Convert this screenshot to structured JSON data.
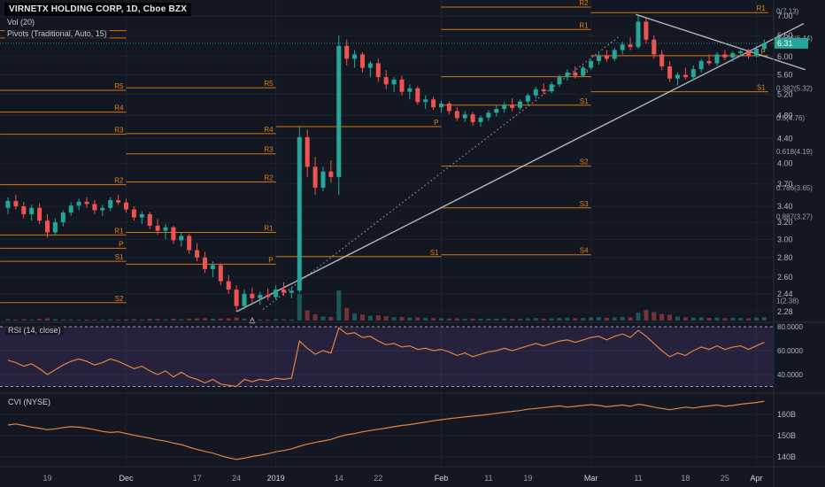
{
  "app": {
    "title": "VIRNETX HOLDING CORP, 1D, Cboe BZX",
    "indicators": {
      "volume": "Vol (20)",
      "pivots": "Pivots (Traditional, Auto, 15)"
    },
    "panels": {
      "rsi": "RSI (14, close)",
      "cvi": "CVI (NYSE)"
    }
  },
  "colors": {
    "bg": "#131722",
    "up": "#26a69a",
    "down": "#ef5350",
    "pivot": "#e8820e",
    "trend": "#b8bcc8",
    "rsi_line": "#e0833c",
    "cvi_line": "#e0833c",
    "band": "#7e57c2",
    "grid": "#1c2230",
    "separator": "#2a2e39",
    "axis_text": "#b2b5be",
    "axis_text_dim": "#9598a1",
    "axis_text_strong": "#d1d4dc",
    "fib_text": "#9aa0aa",
    "price_tag_bg": "#26a69a"
  },
  "chart_data": {
    "type": "candlestick",
    "symbol": "VIRNETX HOLDING CORP",
    "interval": "1D",
    "exchange": "Cboe BZX",
    "price_scale": "log",
    "price_axis_labels": [
      "7.00",
      "6.50",
      "6.00",
      "5.60",
      "5.20",
      "4.80",
      "4.40",
      "4.00",
      "3.70",
      "3.40",
      "3.20",
      "3.00",
      "2.80",
      "2.60",
      "2.44",
      "2.28"
    ],
    "time_axis_labels": [
      {
        "i": 5,
        "t": "19",
        "strong": false
      },
      {
        "i": 15,
        "t": "Dec",
        "strong": true
      },
      {
        "i": 24,
        "t": "17",
        "strong": false
      },
      {
        "i": 29,
        "t": "24",
        "strong": false
      },
      {
        "i": 34,
        "t": "2019",
        "strong": true
      },
      {
        "i": 42,
        "t": "14",
        "strong": false
      },
      {
        "i": 47,
        "t": "22",
        "strong": false
      },
      {
        "i": 55,
        "t": "Feb",
        "strong": true
      },
      {
        "i": 61,
        "t": "11",
        "strong": false
      },
      {
        "i": 66,
        "t": "19",
        "strong": false
      },
      {
        "i": 74,
        "t": "Mar",
        "strong": true
      },
      {
        "i": 80,
        "t": "11",
        "strong": false
      },
      {
        "i": 86,
        "t": "18",
        "strong": false
      },
      {
        "i": 91,
        "t": "25",
        "strong": false
      },
      {
        "i": 95,
        "t": "Apr",
        "strong": true
      }
    ],
    "volume_max": 25,
    "candles": [
      [
        3.38,
        3.52,
        3.3,
        3.47,
        1.2
      ],
      [
        3.47,
        3.55,
        3.36,
        3.4,
        0.9
      ],
      [
        3.4,
        3.46,
        3.25,
        3.3,
        1.1
      ],
      [
        3.3,
        3.42,
        3.22,
        3.38,
        0.8
      ],
      [
        3.38,
        3.44,
        3.18,
        3.22,
        1.3
      ],
      [
        3.22,
        3.3,
        3.02,
        3.08,
        1.8
      ],
      [
        3.08,
        3.25,
        3.05,
        3.2,
        1.1
      ],
      [
        3.2,
        3.35,
        3.15,
        3.32,
        0.9
      ],
      [
        3.32,
        3.45,
        3.28,
        3.41,
        0.8
      ],
      [
        3.41,
        3.5,
        3.35,
        3.46,
        0.7
      ],
      [
        3.46,
        3.52,
        3.38,
        3.43,
        0.6
      ],
      [
        3.43,
        3.48,
        3.3,
        3.35,
        0.8
      ],
      [
        3.35,
        3.42,
        3.28,
        3.38,
        0.7
      ],
      [
        3.38,
        3.52,
        3.34,
        3.48,
        0.9
      ],
      [
        3.48,
        3.55,
        3.42,
        3.45,
        0.8
      ],
      [
        3.45,
        3.5,
        3.32,
        3.36,
        1.0
      ],
      [
        3.36,
        3.4,
        3.22,
        3.26,
        1.2
      ],
      [
        3.26,
        3.34,
        3.18,
        3.3,
        0.9
      ],
      [
        3.3,
        3.33,
        3.12,
        3.16,
        1.4
      ],
      [
        3.16,
        3.24,
        3.05,
        3.1,
        1.3
      ],
      [
        3.1,
        3.18,
        3.0,
        3.14,
        1.0
      ],
      [
        3.14,
        3.16,
        2.95,
        2.99,
        1.5
      ],
      [
        2.99,
        3.08,
        2.92,
        3.04,
        1.1
      ],
      [
        3.04,
        3.06,
        2.84,
        2.88,
        1.6
      ],
      [
        2.88,
        2.96,
        2.76,
        2.8,
        1.8
      ],
      [
        2.8,
        2.86,
        2.64,
        2.68,
        2.0
      ],
      [
        2.68,
        2.76,
        2.6,
        2.72,
        1.4
      ],
      [
        2.72,
        2.74,
        2.52,
        2.56,
        1.7
      ],
      [
        2.56,
        2.62,
        2.44,
        2.48,
        1.9
      ],
      [
        2.48,
        2.52,
        2.28,
        2.33,
        2.4
      ],
      [
        2.33,
        2.48,
        2.3,
        2.44,
        1.6
      ],
      [
        2.44,
        2.5,
        2.36,
        2.4,
        1.1
      ],
      [
        2.4,
        2.46,
        2.34,
        2.43,
        0.9
      ],
      [
        2.43,
        2.49,
        2.38,
        2.41,
        0.8
      ],
      [
        2.41,
        2.52,
        2.39,
        2.48,
        1.2
      ],
      [
        2.48,
        2.55,
        2.42,
        2.45,
        1.0
      ],
      [
        2.45,
        2.5,
        2.4,
        2.47,
        0.9
      ],
      [
        2.47,
        4.6,
        2.45,
        4.42,
        22.0
      ],
      [
        4.42,
        4.55,
        3.8,
        3.95,
        8.5
      ],
      [
        3.95,
        4.1,
        3.55,
        3.65,
        5.2
      ],
      [
        3.65,
        3.95,
        3.6,
        3.88,
        3.4
      ],
      [
        3.88,
        4.05,
        3.72,
        3.8,
        3.0
      ],
      [
        3.8,
        6.5,
        3.55,
        6.25,
        25.0
      ],
      [
        6.25,
        6.4,
        5.8,
        5.95,
        10.5
      ],
      [
        5.95,
        6.15,
        5.75,
        6.05,
        6.0
      ],
      [
        6.05,
        6.1,
        5.65,
        5.75,
        5.0
      ],
      [
        5.75,
        5.9,
        5.55,
        5.85,
        4.0
      ],
      [
        5.85,
        5.95,
        5.45,
        5.55,
        4.4
      ],
      [
        5.55,
        5.7,
        5.3,
        5.4,
        3.6
      ],
      [
        5.4,
        5.55,
        5.25,
        5.5,
        2.8
      ],
      [
        5.5,
        5.58,
        5.18,
        5.25,
        3.0
      ],
      [
        5.25,
        5.4,
        5.1,
        5.32,
        2.4
      ],
      [
        5.32,
        5.36,
        5.0,
        5.05,
        2.6
      ],
      [
        5.05,
        5.18,
        4.92,
        5.1,
        2.2
      ],
      [
        5.1,
        5.15,
        4.9,
        4.95,
        2.0
      ],
      [
        4.95,
        5.08,
        4.85,
        5.02,
        1.8
      ],
      [
        5.02,
        5.06,
        4.82,
        4.88,
        1.7
      ],
      [
        4.88,
        4.95,
        4.7,
        4.75,
        1.9
      ],
      [
        4.75,
        4.88,
        4.68,
        4.82,
        1.5
      ],
      [
        4.82,
        4.86,
        4.62,
        4.68,
        1.6
      ],
      [
        4.68,
        4.8,
        4.6,
        4.76,
        1.4
      ],
      [
        4.76,
        4.9,
        4.7,
        4.85,
        1.6
      ],
      [
        4.85,
        4.98,
        4.78,
        4.92,
        1.5
      ],
      [
        4.92,
        5.05,
        4.85,
        5.0,
        1.7
      ],
      [
        5.0,
        5.12,
        4.88,
        4.94,
        1.4
      ],
      [
        4.94,
        5.1,
        4.9,
        5.06,
        1.5
      ],
      [
        5.06,
        5.22,
        5.0,
        5.18,
        1.8
      ],
      [
        5.18,
        5.35,
        5.12,
        5.3,
        2.0
      ],
      [
        5.3,
        5.42,
        5.2,
        5.26,
        1.6
      ],
      [
        5.26,
        5.45,
        5.22,
        5.4,
        1.8
      ],
      [
        5.4,
        5.6,
        5.35,
        5.55,
        2.2
      ],
      [
        5.55,
        5.72,
        5.48,
        5.65,
        2.4
      ],
      [
        5.65,
        5.78,
        5.52,
        5.58,
        1.9
      ],
      [
        5.58,
        5.8,
        5.55,
        5.75,
        2.1
      ],
      [
        5.75,
        5.95,
        5.7,
        5.9,
        2.6
      ],
      [
        5.9,
        6.08,
        5.82,
        6.02,
        2.8
      ],
      [
        6.02,
        6.15,
        5.88,
        5.95,
        2.3
      ],
      [
        5.95,
        6.2,
        5.9,
        6.15,
        2.6
      ],
      [
        6.15,
        6.35,
        6.05,
        6.28,
        3.0
      ],
      [
        6.28,
        6.45,
        6.15,
        6.22,
        2.7
      ],
      [
        6.22,
        7.0,
        6.18,
        6.85,
        6.5
      ],
      [
        6.85,
        6.95,
        6.3,
        6.4,
        9.0
      ],
      [
        6.4,
        6.5,
        5.95,
        6.05,
        7.0
      ],
      [
        6.05,
        6.15,
        5.7,
        5.78,
        5.5
      ],
      [
        5.78,
        5.9,
        5.45,
        5.52,
        4.8
      ],
      [
        5.52,
        5.65,
        5.38,
        5.6,
        3.2
      ],
      [
        5.6,
        5.75,
        5.5,
        5.55,
        2.6
      ],
      [
        5.55,
        5.8,
        5.48,
        5.72,
        2.4
      ],
      [
        5.72,
        5.95,
        5.65,
        5.9,
        2.8
      ],
      [
        5.9,
        6.05,
        5.8,
        5.85,
        2.2
      ],
      [
        5.85,
        6.1,
        5.78,
        6.05,
        2.5
      ],
      [
        6.05,
        6.15,
        5.92,
        5.98,
        2.0
      ],
      [
        5.98,
        6.12,
        5.88,
        6.08,
        2.2
      ],
      [
        6.08,
        6.2,
        6.0,
        6.12,
        2.1
      ],
      [
        6.12,
        6.18,
        5.95,
        6.02,
        1.9
      ],
      [
        6.02,
        6.25,
        5.98,
        6.18,
        2.4
      ],
      [
        6.18,
        6.4,
        6.1,
        6.31,
        2.8
      ]
    ],
    "pivot_groups": [
      {
        "i1": -1,
        "i2": 15,
        "levels": [
          {
            "label": "",
            "price": 6.62
          },
          {
            "label": "",
            "price": 6.44
          },
          {
            "label": "R5",
            "price": 5.28
          },
          {
            "label": "R4",
            "price": 4.86
          },
          {
            "label": "R3",
            "price": 4.47
          },
          {
            "label": "R2",
            "price": 3.69
          },
          {
            "label": "R1",
            "price": 3.05
          },
          {
            "label": "P",
            "price": 2.9
          },
          {
            "label": "S1",
            "price": 2.76
          },
          {
            "label": "S2",
            "price": 2.36
          }
        ]
      },
      {
        "i1": 15,
        "i2": 34,
        "levels": [
          {
            "label": "R5",
            "price": 5.33
          },
          {
            "label": "R4",
            "price": 4.48
          },
          {
            "label": "R3",
            "price": 4.15
          },
          {
            "label": "R2",
            "price": 3.73
          },
          {
            "label": "R1",
            "price": 3.08
          },
          {
            "label": "P",
            "price": 2.73
          }
        ]
      },
      {
        "i1": 34,
        "i2": 55,
        "levels": [
          {
            "label": "P",
            "price": 4.6
          },
          {
            "label": "S1",
            "price": 2.81
          }
        ]
      },
      {
        "i1": 55,
        "i2": 74,
        "levels": [
          {
            "label": "R2",
            "price": 7.24
          },
          {
            "label": "R1",
            "price": 6.65
          },
          {
            "label": "P",
            "price": 5.56
          },
          {
            "label": "S1",
            "price": 4.99
          },
          {
            "label": "S2",
            "price": 3.96
          },
          {
            "label": "S3",
            "price": 3.38
          },
          {
            "label": "S4",
            "price": 2.83
          }
        ]
      },
      {
        "i1": 74,
        "i2": 96.5,
        "levels": [
          {
            "label": "R1",
            "price": 7.09
          },
          {
            "label": "P",
            "price": 6.02
          },
          {
            "label": "S1",
            "price": 5.25
          }
        ]
      }
    ],
    "trendlines": [
      {
        "i1": 29,
        "p1": 2.28,
        "i2": 101,
        "p2": 6.8,
        "dashed": false
      },
      {
        "i1": 79.7,
        "p1": 7.04,
        "i2": 101.2,
        "p2": 5.71,
        "dashed": false
      },
      {
        "i1": 32.4,
        "p1": 2.3,
        "i2": 77.6,
        "p2": 6.48,
        "dashed": true
      }
    ],
    "fib_labels": [
      {
        "text": "0(7.13)",
        "price": 7.13
      },
      {
        "text": "0.146(6.44)",
        "price": 6.44
      },
      {
        "text": "0.382(5.32)",
        "price": 5.32
      },
      {
        "text": "0.5(4.76)",
        "price": 4.76
      },
      {
        "text": "0.618(4.19)",
        "price": 4.19
      },
      {
        "text": "0.786(3.65)",
        "price": 3.65
      },
      {
        "text": "0.887(3.27)",
        "price": 3.27
      },
      {
        "text": "1(2.38)",
        "price": 2.38
      }
    ],
    "last_price": {
      "text": "6.31",
      "price": 6.31
    },
    "marker": {
      "i": 31,
      "price": 2.25,
      "glyph": "△"
    },
    "rsi": [
      52,
      50,
      47,
      49,
      45,
      40,
      44,
      48,
      51,
      53,
      51,
      48,
      50,
      53,
      51,
      48,
      45,
      47,
      43,
      40,
      43,
      38,
      42,
      38,
      36,
      33,
      36,
      32,
      31,
      30,
      36,
      34,
      36,
      35,
      37,
      36,
      37,
      68,
      62,
      57,
      60,
      58,
      79,
      74,
      75,
      71,
      72,
      68,
      65,
      66,
      63,
      64,
      61,
      62,
      60,
      61,
      59,
      56,
      58,
      55,
      57,
      59,
      60,
      62,
      60,
      62,
      64,
      66,
      64,
      66,
      68,
      69,
      67,
      69,
      71,
      72,
      69,
      72,
      74,
      71,
      77,
      72,
      66,
      60,
      55,
      58,
      56,
      60,
      63,
      61,
      64,
      61,
      63,
      64,
      61,
      64,
      67
    ],
    "rsi_axis_labels": [
      {
        "v": 80,
        "t": "80.0000"
      },
      {
        "v": 60,
        "t": "60.0000"
      },
      {
        "v": 40,
        "t": "40.0000"
      }
    ],
    "rsi_band": [
      30,
      80
    ],
    "cvi": [
      155,
      155.5,
      154.8,
      154,
      153.5,
      152.8,
      153.2,
      153.8,
      154.2,
      154,
      153.5,
      152.8,
      152,
      151.5,
      151.8,
      151,
      150.2,
      149.5,
      148.8,
      148,
      147.4,
      146.5,
      145.8,
      144.6,
      143.5,
      142.6,
      141.8,
      140.6,
      139.6,
      138.8,
      139.4,
      140.2,
      140.8,
      141.5,
      142.4,
      143,
      143.8,
      145,
      146,
      146.8,
      147.5,
      148.2,
      149.5,
      150.4,
      151,
      151.8,
      152.4,
      153,
      153.6,
      154.2,
      154.8,
      155.2,
      155.8,
      156.4,
      157,
      157.5,
      158,
      158.4,
      158.8,
      159.2,
      159.6,
      160,
      160.5,
      161,
      161.4,
      161.8,
      162.4,
      162.8,
      163.2,
      163.6,
      164,
      163.4,
      163.8,
      164.2,
      164.6,
      164.2,
      163.6,
      164,
      164.4,
      163.8,
      164.8,
      164.2,
      163.4,
      162.8,
      162.2,
      162.8,
      163.4,
      163,
      163.6,
      164,
      164.4,
      163.8,
      164.2,
      164.8,
      165.2,
      165.6,
      166.2
    ],
    "cvi_axis_labels": [
      {
        "v": 160,
        "t": "160B"
      },
      {
        "v": 150,
        "t": "150B"
      },
      {
        "v": 140,
        "t": "140B"
      }
    ]
  }
}
